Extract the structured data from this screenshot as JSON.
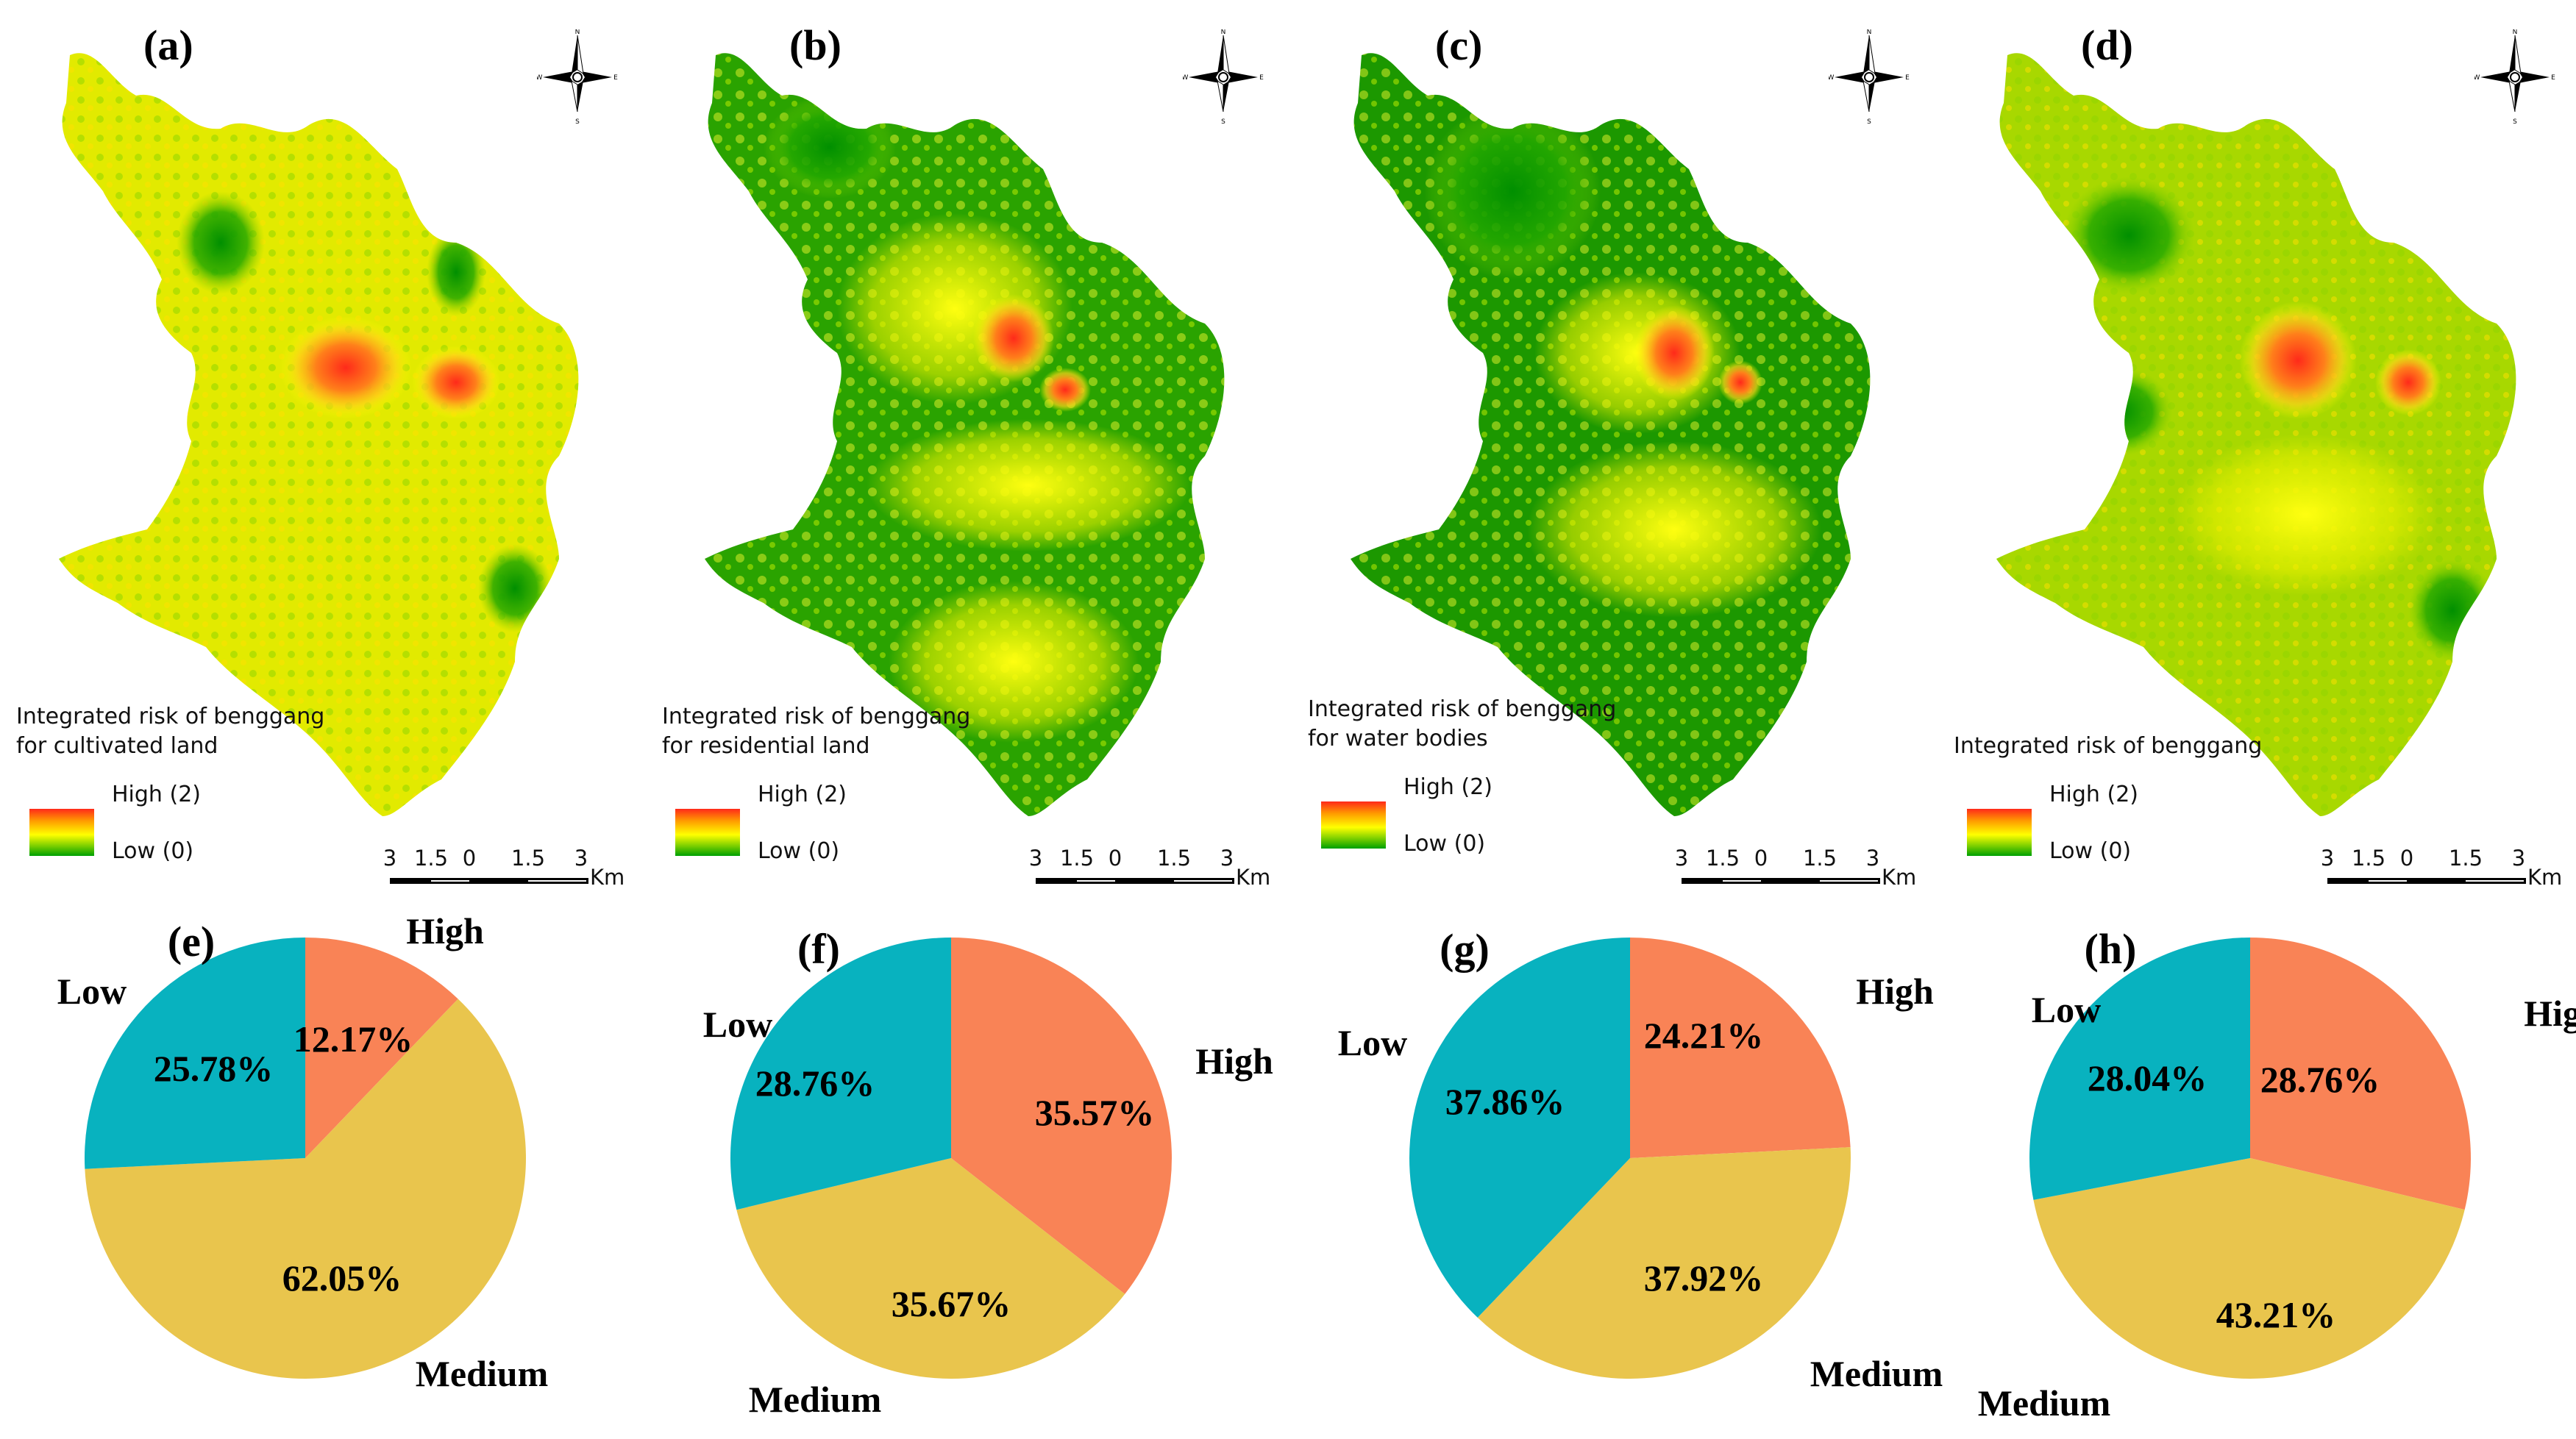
{
  "figure": {
    "panels": [
      {
        "map_label": "(a)",
        "legend_title": "Integrated risk of benggang\nfor cultivated land",
        "legend_high": "High (2)",
        "legend_low": "Low (0)",
        "scale_ticks": [
          "3",
          "1.5",
          "0",
          "1.5",
          "3"
        ],
        "scale_unit": "Km",
        "pie_label": "(e)"
      },
      {
        "map_label": "(b)",
        "legend_title": "Integrated risk of benggang\nfor residential land",
        "legend_high": "High (2)",
        "legend_low": "Low (0)",
        "scale_ticks": [
          "3",
          "1.5",
          "0",
          "1.5",
          "3"
        ],
        "scale_unit": "Km",
        "pie_label": "(f)"
      },
      {
        "map_label": "(c)",
        "legend_title": "Integrated risk of benggang\nfor water bodies",
        "legend_high": "High (2)",
        "legend_low": "Low (0)",
        "scale_ticks": [
          "3",
          "1.5",
          "0",
          "1.5",
          "3"
        ],
        "scale_unit": "Km",
        "pie_label": "(g)"
      },
      {
        "map_label": "(d)",
        "legend_title": "Integrated risk of benggang",
        "legend_high": "High (2)",
        "legend_low": "Low (0)",
        "scale_ticks": [
          "3",
          "1.5",
          "0",
          "1.5",
          "3"
        ],
        "scale_unit": "Km",
        "pie_label": "(h)"
      }
    ],
    "map_palette": {
      "low": "#00a000",
      "mid_low": "#7fd000",
      "mid": "#ffff00",
      "mid_high": "#ff9900",
      "high": "#ff2a1a"
    }
  },
  "chart_data": [
    {
      "type": "pie",
      "title": "(e)",
      "slices": [
        {
          "name": "High",
          "value": 12.17,
          "label": "12.17%",
          "color": "#f98356"
        },
        {
          "name": "Medium",
          "value": 62.05,
          "label": "62.05%",
          "color": "#e9c54d"
        },
        {
          "name": "Low",
          "value": 25.78,
          "label": "25.78%",
          "color": "#08b2bf"
        }
      ]
    },
    {
      "type": "pie",
      "title": "(f)",
      "slices": [
        {
          "name": "High",
          "value": 35.57,
          "label": "35.57%",
          "color": "#f98356"
        },
        {
          "name": "Medium",
          "value": 35.67,
          "label": "35.67%",
          "color": "#e9c54d"
        },
        {
          "name": "Low",
          "value": 28.76,
          "label": "28.76%",
          "color": "#08b2bf"
        }
      ]
    },
    {
      "type": "pie",
      "title": "(g)",
      "slices": [
        {
          "name": "High",
          "value": 24.21,
          "label": "24.21%",
          "color": "#f98356"
        },
        {
          "name": "Medium",
          "value": 37.92,
          "label": "37.92%",
          "color": "#e9c54d"
        },
        {
          "name": "Low",
          "value": 37.86,
          "label": "37.86%",
          "color": "#08b2bf"
        }
      ]
    },
    {
      "type": "pie",
      "title": "(h)",
      "slices": [
        {
          "name": "High",
          "value": 28.76,
          "label": "28.76%",
          "color": "#f98356"
        },
        {
          "name": "Medium",
          "value": 43.21,
          "label": "43.21%",
          "color": "#e9c54d"
        },
        {
          "name": "Low",
          "value": 28.04,
          "label": "28.04%",
          "color": "#08b2bf"
        }
      ]
    }
  ]
}
